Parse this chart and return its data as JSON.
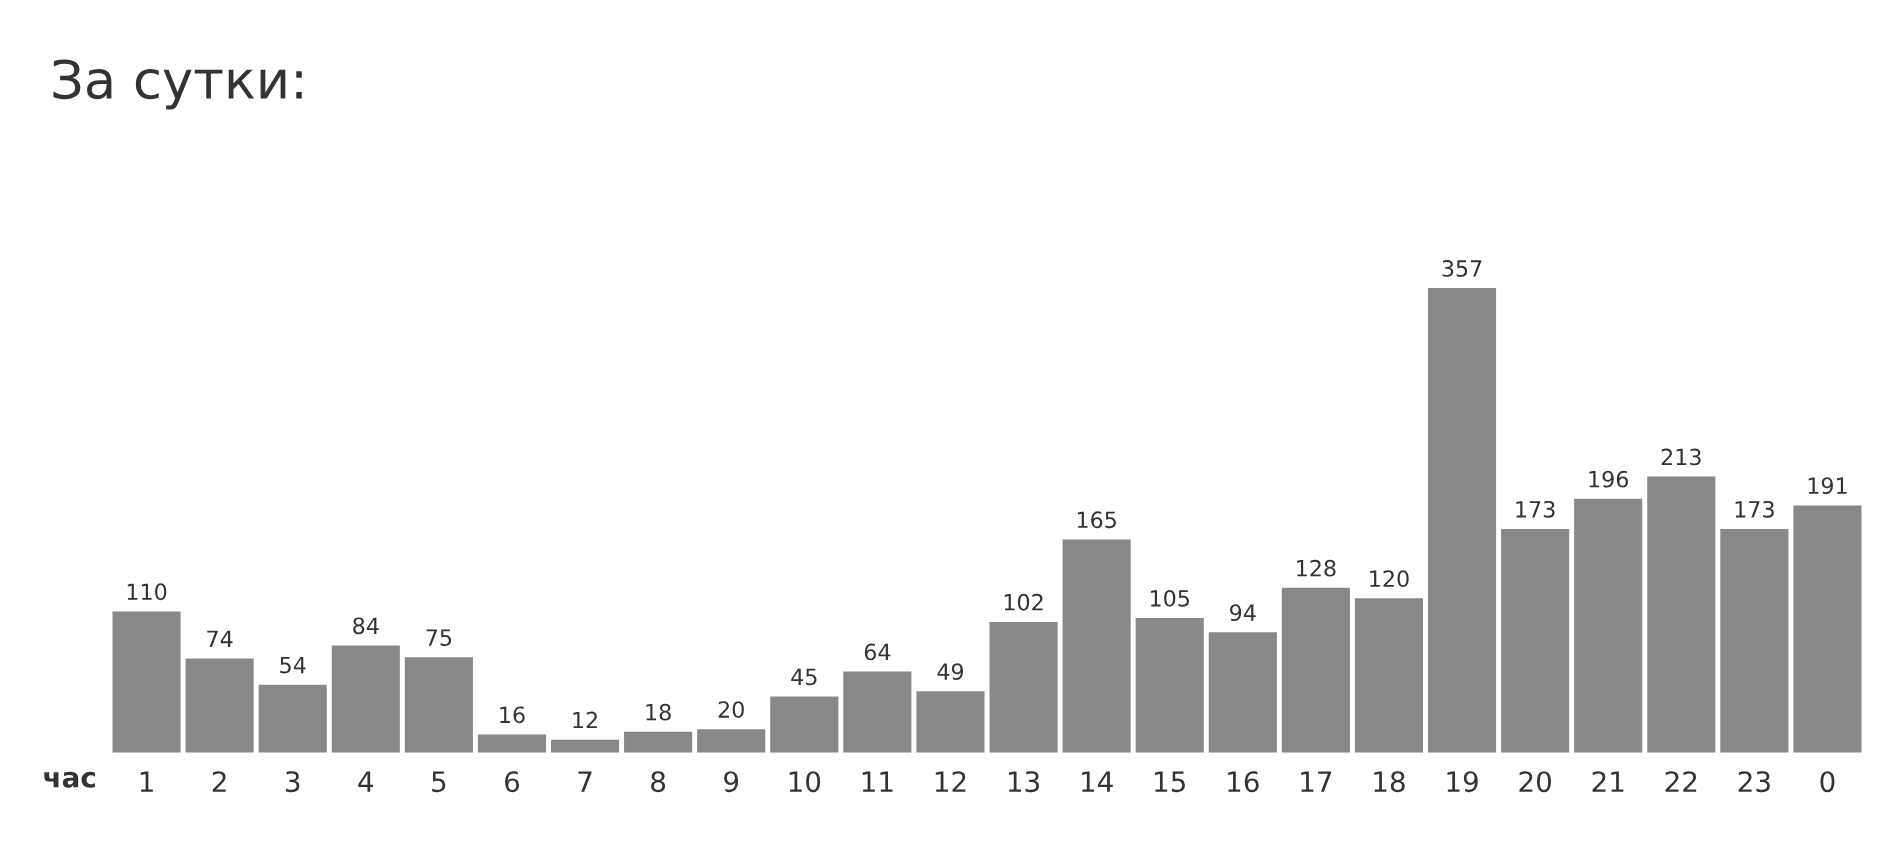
{
  "chart_data": {
    "type": "bar",
    "title": "За сутки:",
    "xlabel": "час",
    "categories": [
      "1",
      "2",
      "3",
      "4",
      "5",
      "6",
      "7",
      "8",
      "9",
      "10",
      "11",
      "12",
      "13",
      "14",
      "15",
      "16",
      "17",
      "18",
      "19",
      "20",
      "21",
      "22",
      "23",
      "0"
    ],
    "values": [
      110,
      74,
      54,
      84,
      75,
      16,
      12,
      18,
      20,
      45,
      64,
      49,
      102,
      165,
      105,
      94,
      128,
      120,
      357,
      173,
      196,
      213,
      173,
      191
    ],
    "color": "#888888",
    "data_labels": true,
    "tick_labels": "x",
    "grid": false,
    "legend": false
  }
}
